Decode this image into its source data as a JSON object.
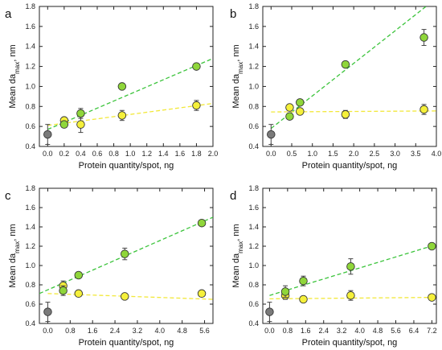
{
  "colors": {
    "green_fill": "#8fd63a",
    "green_line": "#3cc43c",
    "yellow_fill": "#f5f03a",
    "yellow_line": "#f2e83a",
    "control_fill": "#7a7a7a",
    "marker_stroke": "#333333",
    "error_bar": "#444444",
    "axis": "#222222"
  },
  "chart_data": [
    {
      "panel": "a",
      "type": "scatter",
      "xlabel": "Protein quantity/spot, ng",
      "ylabel_main": "Mean da",
      "ylabel_sub": "max",
      "ylabel_tail": ", nm",
      "xlim": [
        -0.1,
        2.0
      ],
      "ylim": [
        0.4,
        1.8
      ],
      "xticks": [
        "0.0",
        "0.2",
        "0.4",
        "0.6",
        "0.8",
        "1.0",
        "1.2",
        "1.4",
        "1.6",
        "1.8",
        "2.0"
      ],
      "xtick_values": [
        0.0,
        0.2,
        0.4,
        0.6,
        0.8,
        1.0,
        1.2,
        1.4,
        1.6,
        1.8,
        2.0
      ],
      "yticks": [
        "0.4",
        "0.6",
        "0.8",
        "1.0",
        "1.2",
        "1.4",
        "1.6",
        "1.8"
      ],
      "ytick_values": [
        0.4,
        0.6,
        0.8,
        1.0,
        1.2,
        1.4,
        1.6,
        1.8
      ],
      "control": {
        "x": 0.0,
        "y": 0.52,
        "err": 0.1
      },
      "series": [
        {
          "color": "green",
          "x": [
            0.2,
            0.4,
            0.9,
            1.8
          ],
          "y": [
            0.62,
            0.73,
            1.0,
            1.2
          ],
          "err": [
            0.03,
            0.05,
            0.02,
            0.02
          ],
          "trend": [
            [
              0.0,
              0.57
            ],
            [
              2.0,
              1.28
            ]
          ]
        },
        {
          "color": "yellow",
          "x": [
            0.2,
            0.4,
            0.9,
            1.8
          ],
          "y": [
            0.66,
            0.62,
            0.71,
            0.81
          ],
          "err": [
            0.03,
            0.08,
            0.05,
            0.05
          ],
          "trend": [
            [
              0.0,
              0.61
            ],
            [
              2.0,
              0.83
            ]
          ]
        }
      ]
    },
    {
      "panel": "b",
      "type": "scatter",
      "xlabel": "Protein quantity/spot, ng",
      "ylabel_main": "Mean da",
      "ylabel_sub": "max",
      "ylabel_tail": ", nm",
      "xlim": [
        -0.2,
        4.0
      ],
      "ylim": [
        0.4,
        1.8
      ],
      "xticks": [
        "0.0",
        "0.5",
        "1.0",
        "1.5",
        "2.0",
        "2.5",
        "3.0",
        "3.5",
        "4.0"
      ],
      "xtick_values": [
        0.0,
        0.5,
        1.0,
        1.5,
        2.0,
        2.5,
        3.0,
        3.5,
        4.0
      ],
      "yticks": [
        "0.4",
        "0.6",
        "0.8",
        "1.0",
        "1.2",
        "1.4",
        "1.6",
        "1.8"
      ],
      "ytick_values": [
        0.4,
        0.6,
        0.8,
        1.0,
        1.2,
        1.4,
        1.6,
        1.8
      ],
      "control": {
        "x": 0.0,
        "y": 0.52,
        "err": 0.1
      },
      "series": [
        {
          "color": "green",
          "x": [
            0.45,
            0.7,
            1.8,
            3.7
          ],
          "y": [
            0.7,
            0.84,
            1.22,
            1.49
          ],
          "err": [
            0.03,
            0.03,
            0.03,
            0.08
          ],
          "trend": [
            [
              0.0,
              0.58
            ],
            [
              3.75,
              1.8
            ]
          ]
        },
        {
          "color": "yellow",
          "x": [
            0.45,
            0.7,
            1.8,
            3.7
          ],
          "y": [
            0.79,
            0.75,
            0.72,
            0.77
          ],
          "err": [
            0.03,
            0.03,
            0.04,
            0.05
          ],
          "trend": [
            [
              0.0,
              0.745
            ],
            [
              4.0,
              0.755
            ]
          ]
        }
      ]
    },
    {
      "panel": "c",
      "type": "scatter",
      "xlabel": "Protein quantity/spot, ng",
      "ylabel_main": "Mean da",
      "ylabel_sub": "max",
      "ylabel_tail": ", nm",
      "xlim": [
        -0.3,
        5.9
      ],
      "ylim": [
        0.4,
        1.8
      ],
      "xticks": [
        "0.0",
        "0.8",
        "1.6",
        "2.4",
        "3.2",
        "4.0",
        "4.8",
        "5.6"
      ],
      "xtick_values": [
        0.0,
        0.8,
        1.6,
        2.4,
        3.2,
        4.0,
        4.8,
        5.6
      ],
      "yticks": [
        "0.4",
        "0.6",
        "0.8",
        "1.0",
        "1.2",
        "1.4",
        "1.6",
        "1.8"
      ],
      "ytick_values": [
        0.4,
        0.6,
        0.8,
        1.0,
        1.2,
        1.4,
        1.6,
        1.8
      ],
      "control": {
        "x": 0.0,
        "y": 0.52,
        "err": 0.1
      },
      "series": [
        {
          "color": "green",
          "x": [
            0.55,
            1.1,
            2.75,
            5.5
          ],
          "y": [
            0.74,
            0.9,
            1.12,
            1.44
          ],
          "err": [
            0.05,
            0.02,
            0.06,
            0.02
          ],
          "trend": [
            [
              -0.3,
              0.71
            ],
            [
              5.9,
              1.5
            ]
          ]
        },
        {
          "color": "yellow",
          "x": [
            0.55,
            1.1,
            2.75,
            5.5
          ],
          "y": [
            0.79,
            0.71,
            0.68,
            0.71
          ],
          "err": [
            0.05,
            0.03,
            0.03,
            0.02
          ],
          "trend": [
            [
              0.0,
              0.71
            ],
            [
              5.9,
              0.65
            ]
          ]
        }
      ]
    },
    {
      "panel": "d",
      "type": "scatter",
      "xlabel": "Protein quantity/spot, ng",
      "ylabel_main": "Mean da",
      "ylabel_sub": "max",
      "ylabel_tail": ", nm",
      "xlim": [
        -0.3,
        7.4
      ],
      "ylim": [
        0.4,
        1.8
      ],
      "xticks": [
        "0.0",
        "0.8",
        "1.6",
        "2.4",
        "3.2",
        "4.0",
        "4.8",
        "5.6",
        "6.4",
        "7.2"
      ],
      "xtick_values": [
        0.0,
        0.8,
        1.6,
        2.4,
        3.2,
        4.0,
        4.8,
        5.6,
        6.4,
        7.2
      ],
      "yticks": [
        "0.4",
        "0.6",
        "0.8",
        "1.0",
        "1.2",
        "1.4",
        "1.6",
        "1.8"
      ],
      "ytick_values": [
        0.4,
        0.6,
        0.8,
        1.0,
        1.2,
        1.4,
        1.6,
        1.8
      ],
      "control": {
        "x": 0.0,
        "y": 0.52,
        "err": 0.1
      },
      "series": [
        {
          "color": "green",
          "x": [
            0.7,
            1.5,
            3.6,
            7.2
          ],
          "y": [
            0.73,
            0.84,
            0.99,
            1.2
          ],
          "err": [
            0.06,
            0.05,
            0.08,
            0.02
          ],
          "trend": [
            [
              0.0,
              0.69
            ],
            [
              7.3,
              1.21
            ]
          ]
        },
        {
          "color": "yellow",
          "x": [
            0.7,
            1.5,
            3.6,
            7.2
          ],
          "y": [
            0.69,
            0.65,
            0.69,
            0.67
          ],
          "err": [
            0.04,
            0.02,
            0.05,
            0.02
          ],
          "trend": [
            [
              0.0,
              0.655
            ],
            [
              7.3,
              0.67
            ]
          ]
        }
      ]
    }
  ]
}
